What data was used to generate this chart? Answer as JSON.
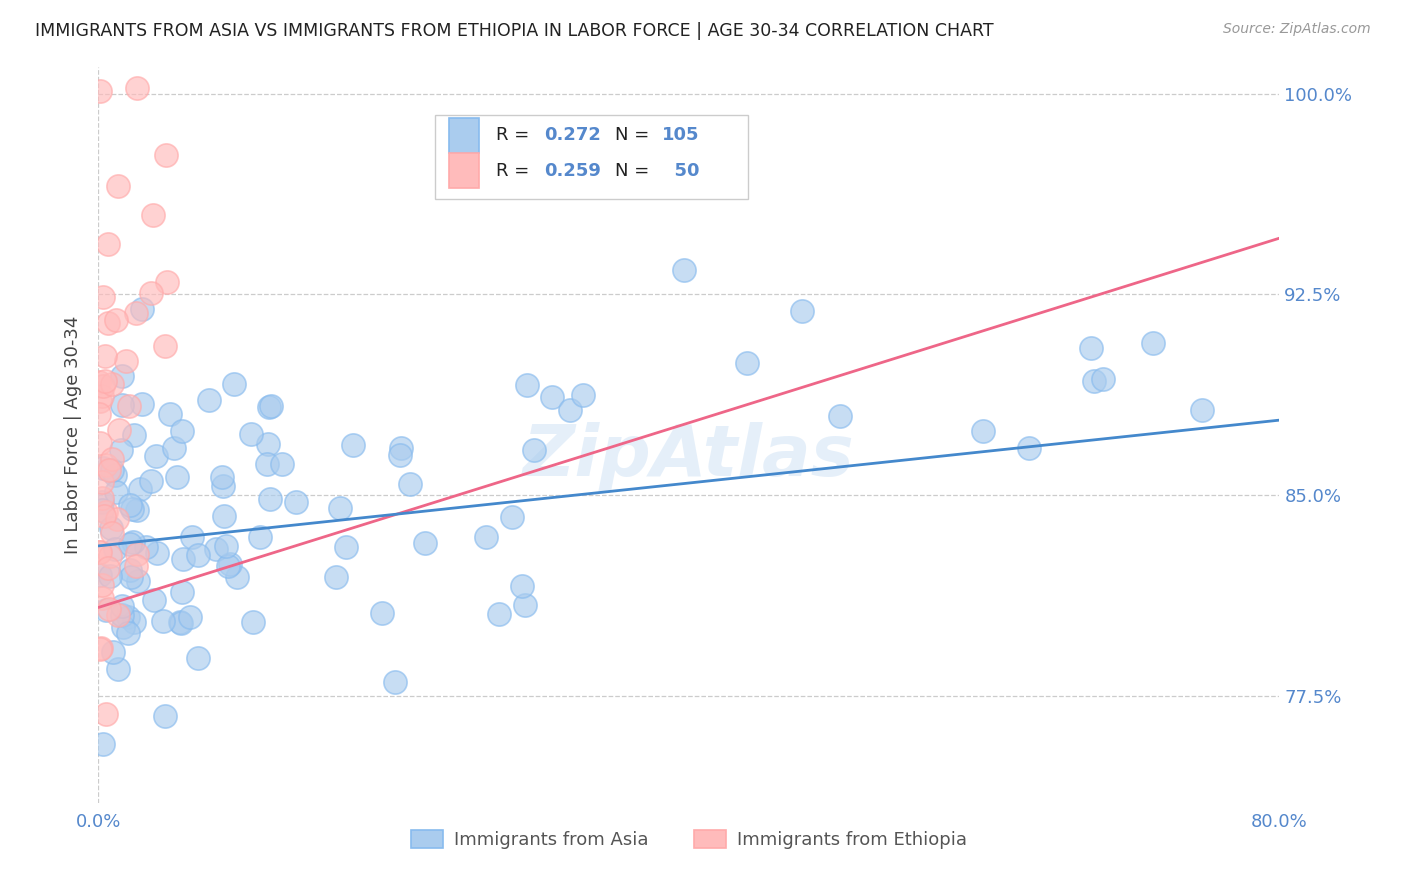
{
  "title": "IMMIGRANTS FROM ASIA VS IMMIGRANTS FROM ETHIOPIA IN LABOR FORCE | AGE 30-34 CORRELATION CHART",
  "source": "Source: ZipAtlas.com",
  "ylabel": "In Labor Force | Age 30-34",
  "x_min": 0.0,
  "x_max": 0.8,
  "y_min": 0.735,
  "y_max": 1.01,
  "y_ticks": [
    0.775,
    0.85,
    0.925,
    1.0
  ],
  "y_tick_labels": [
    "77.5%",
    "85.0%",
    "92.5%",
    "100.0%"
  ],
  "x_ticks": [
    0.0,
    0.1,
    0.2,
    0.3,
    0.4,
    0.5,
    0.6,
    0.7,
    0.8
  ],
  "x_tick_labels": [
    "0.0%",
    "",
    "",
    "",
    "",
    "",
    "",
    "",
    "80.0%"
  ],
  "watermark": "ZipAtlas",
  "color_asia": "#88BBEE",
  "color_asia_fill": "#AACCEE",
  "color_ethiopia": "#FFAAAA",
  "color_ethiopia_fill": "#FFBBBB",
  "color_asia_line": "#4488CC",
  "color_ethiopia_line": "#EE6688",
  "color_axis_labels": "#5588CC",
  "background_color": "#FFFFFF",
  "asia_trend_x0": 0.0,
  "asia_trend_x1": 0.8,
  "asia_trend_y0": 0.831,
  "asia_trend_y1": 0.878,
  "eth_trend_x0": 0.0,
  "eth_trend_x1": 0.8,
  "eth_trend_y0": 0.808,
  "eth_trend_y1": 0.946
}
